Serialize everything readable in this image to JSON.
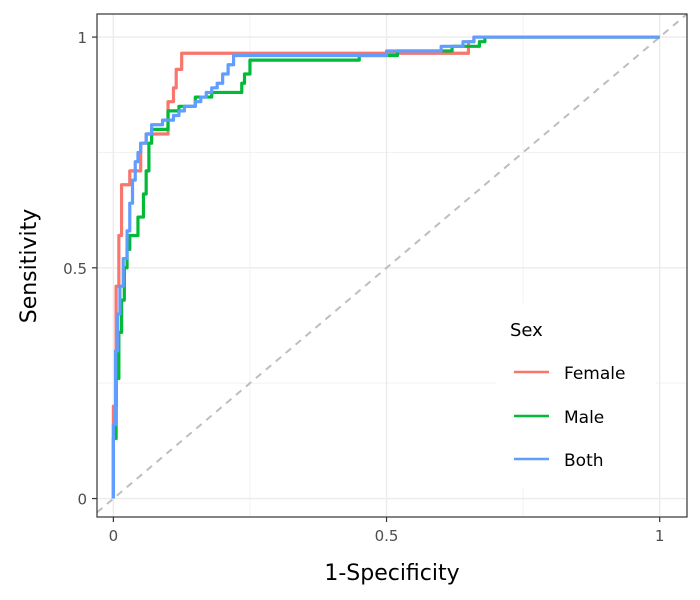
{
  "chart_data": {
    "type": "line",
    "title": "",
    "xlabel": "1-Specificity",
    "ylabel": "Sensitivity",
    "xlim": [
      -0.03,
      1.05
    ],
    "ylim": [
      -0.04,
      1.05
    ],
    "x_ticks": [
      0,
      0.5,
      1
    ],
    "y_ticks": [
      0,
      0.5,
      1
    ],
    "x_tick_labels": [
      "0",
      "0.5",
      "1"
    ],
    "y_tick_labels": [
      "0",
      "0.5",
      "1"
    ],
    "grid": true,
    "reference_line": {
      "from": [
        -0.03,
        -0.03
      ],
      "to": [
        1.05,
        1.05
      ],
      "color": "#bebebe",
      "style": "dashed"
    },
    "legend": {
      "title": "Sex",
      "position": "bottom-right"
    },
    "series": [
      {
        "name": "Female",
        "color": "#F8766D",
        "points": [
          [
            0,
            0
          ],
          [
            0,
            0.2
          ],
          [
            0.005,
            0.2
          ],
          [
            0.005,
            0.46
          ],
          [
            0.01,
            0.46
          ],
          [
            0.01,
            0.57
          ],
          [
            0.015,
            0.57
          ],
          [
            0.015,
            0.68
          ],
          [
            0.03,
            0.68
          ],
          [
            0.03,
            0.71
          ],
          [
            0.05,
            0.71
          ],
          [
            0.05,
            0.77
          ],
          [
            0.06,
            0.77
          ],
          [
            0.06,
            0.79
          ],
          [
            0.1,
            0.79
          ],
          [
            0.1,
            0.86
          ],
          [
            0.11,
            0.86
          ],
          [
            0.11,
            0.89
          ],
          [
            0.115,
            0.89
          ],
          [
            0.115,
            0.93
          ],
          [
            0.125,
            0.93
          ],
          [
            0.125,
            0.965
          ],
          [
            0.4,
            0.965
          ],
          [
            0.4,
            0.965
          ],
          [
            0.65,
            0.965
          ],
          [
            0.65,
            0.99
          ],
          [
            0.66,
            0.99
          ],
          [
            0.66,
            1
          ],
          [
            1,
            1
          ]
        ]
      },
      {
        "name": "Male",
        "color": "#00BA38",
        "points": [
          [
            0,
            0
          ],
          [
            0,
            0.13
          ],
          [
            0.005,
            0.13
          ],
          [
            0.005,
            0.26
          ],
          [
            0.01,
            0.26
          ],
          [
            0.01,
            0.36
          ],
          [
            0.015,
            0.36
          ],
          [
            0.015,
            0.43
          ],
          [
            0.02,
            0.43
          ],
          [
            0.02,
            0.5
          ],
          [
            0.025,
            0.5
          ],
          [
            0.025,
            0.54
          ],
          [
            0.03,
            0.54
          ],
          [
            0.03,
            0.57
          ],
          [
            0.045,
            0.57
          ],
          [
            0.045,
            0.61
          ],
          [
            0.055,
            0.61
          ],
          [
            0.055,
            0.66
          ],
          [
            0.06,
            0.66
          ],
          [
            0.06,
            0.71
          ],
          [
            0.065,
            0.71
          ],
          [
            0.065,
            0.77
          ],
          [
            0.07,
            0.77
          ],
          [
            0.07,
            0.8
          ],
          [
            0.1,
            0.8
          ],
          [
            0.1,
            0.84
          ],
          [
            0.12,
            0.84
          ],
          [
            0.12,
            0.85
          ],
          [
            0.15,
            0.85
          ],
          [
            0.15,
            0.87
          ],
          [
            0.18,
            0.87
          ],
          [
            0.18,
            0.88
          ],
          [
            0.235,
            0.88
          ],
          [
            0.235,
            0.9
          ],
          [
            0.24,
            0.9
          ],
          [
            0.24,
            0.92
          ],
          [
            0.25,
            0.92
          ],
          [
            0.25,
            0.95
          ],
          [
            0.45,
            0.95
          ],
          [
            0.45,
            0.96
          ],
          [
            0.52,
            0.96
          ],
          [
            0.52,
            0.97
          ],
          [
            0.62,
            0.97
          ],
          [
            0.62,
            0.98
          ],
          [
            0.67,
            0.98
          ],
          [
            0.67,
            0.99
          ],
          [
            0.68,
            0.99
          ],
          [
            0.68,
            1
          ],
          [
            1,
            1
          ]
        ]
      },
      {
        "name": "Both",
        "color": "#619CFF",
        "points": [
          [
            0,
            0
          ],
          [
            0,
            0.16
          ],
          [
            0.004,
            0.16
          ],
          [
            0.004,
            0.32
          ],
          [
            0.008,
            0.32
          ],
          [
            0.008,
            0.4
          ],
          [
            0.012,
            0.4
          ],
          [
            0.012,
            0.46
          ],
          [
            0.018,
            0.46
          ],
          [
            0.018,
            0.52
          ],
          [
            0.025,
            0.52
          ],
          [
            0.025,
            0.58
          ],
          [
            0.03,
            0.58
          ],
          [
            0.03,
            0.64
          ],
          [
            0.035,
            0.64
          ],
          [
            0.035,
            0.69
          ],
          [
            0.04,
            0.69
          ],
          [
            0.04,
            0.73
          ],
          [
            0.045,
            0.73
          ],
          [
            0.045,
            0.75
          ],
          [
            0.05,
            0.75
          ],
          [
            0.05,
            0.77
          ],
          [
            0.06,
            0.77
          ],
          [
            0.06,
            0.79
          ],
          [
            0.07,
            0.79
          ],
          [
            0.07,
            0.81
          ],
          [
            0.09,
            0.81
          ],
          [
            0.09,
            0.82
          ],
          [
            0.11,
            0.82
          ],
          [
            0.11,
            0.83
          ],
          [
            0.12,
            0.83
          ],
          [
            0.12,
            0.84
          ],
          [
            0.13,
            0.84
          ],
          [
            0.13,
            0.85
          ],
          [
            0.15,
            0.85
          ],
          [
            0.15,
            0.86
          ],
          [
            0.16,
            0.86
          ],
          [
            0.16,
            0.87
          ],
          [
            0.17,
            0.87
          ],
          [
            0.17,
            0.88
          ],
          [
            0.18,
            0.88
          ],
          [
            0.18,
            0.89
          ],
          [
            0.19,
            0.89
          ],
          [
            0.19,
            0.9
          ],
          [
            0.2,
            0.9
          ],
          [
            0.2,
            0.92
          ],
          [
            0.21,
            0.92
          ],
          [
            0.21,
            0.94
          ],
          [
            0.22,
            0.94
          ],
          [
            0.22,
            0.96
          ],
          [
            0.5,
            0.96
          ],
          [
            0.5,
            0.97
          ],
          [
            0.6,
            0.97
          ],
          [
            0.6,
            0.98
          ],
          [
            0.64,
            0.98
          ],
          [
            0.64,
            0.99
          ],
          [
            0.66,
            0.99
          ],
          [
            0.66,
            1
          ],
          [
            1,
            1
          ]
        ]
      }
    ]
  }
}
